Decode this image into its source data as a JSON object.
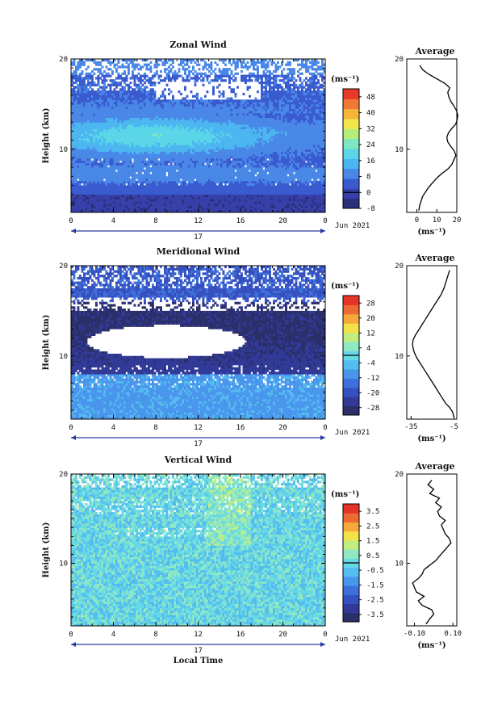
{
  "chart_data": [
    {
      "type": "heatmap",
      "title": "Zonal Wind",
      "ylabel": "Height (km)",
      "y_ticks": [
        "20",
        "10"
      ],
      "ylim": [
        3,
        20
      ],
      "x_ticks": [
        "0",
        "4",
        "8",
        "12",
        "16",
        "20",
        "0"
      ],
      "xlim": [
        0,
        24
      ],
      "date_label": "17",
      "date_right": "Jun 2021",
      "units": "(ms⁻¹)",
      "colorbar_ticks": [
        "48",
        "40",
        "32",
        "24",
        "16",
        "8",
        "0",
        "-8"
      ],
      "colorbar_range": [
        -8,
        52
      ],
      "colors": [
        "#2b2f7a",
        "#3640a8",
        "#3a5bd0",
        "#4a88e8",
        "#4cb6f0",
        "#5ad6e8",
        "#7ee6c0",
        "#b4ee7a",
        "#f2e64a",
        "#f6b43a",
        "#f07836",
        "#e83a2a"
      ],
      "profile": {
        "title": "Average",
        "xlabel": "(ms⁻¹)",
        "x_ticks": [
          "0",
          "10",
          "20"
        ],
        "xlim": [
          -5,
          20
        ],
        "y_ticks": [
          "20",
          "10"
        ],
        "ylim": [
          3,
          20
        ],
        "x": [
          1,
          1.5,
          2.2,
          3.0,
          4.5,
          6.0,
          8.0,
          10.0,
          12.5,
          15.5,
          17.5,
          18.5,
          19.5,
          18.8,
          17.0,
          15.5,
          15.0,
          15.8,
          17.5,
          19.5,
          20.2,
          20.5,
          19.8,
          18.5,
          17.0,
          16.0,
          15.5,
          16.5,
          14.0,
          10.0,
          6.0,
          3.0,
          1.5
        ],
        "y": [
          3.2,
          3.8,
          4.3,
          4.8,
          5.3,
          5.8,
          6.3,
          6.8,
          7.3,
          7.8,
          8.3,
          8.8,
          9.3,
          9.8,
          10.3,
          10.8,
          11.3,
          11.8,
          12.3,
          12.8,
          13.3,
          13.8,
          14.3,
          14.8,
          15.3,
          15.8,
          16.3,
          16.8,
          17.3,
          17.8,
          18.3,
          18.8,
          19.3
        ]
      }
    },
    {
      "type": "heatmap",
      "title": "Meridional Wind",
      "ylabel": "Height (km)",
      "y_ticks": [
        "20",
        "10"
      ],
      "ylim": [
        3,
        20
      ],
      "x_ticks": [
        "0",
        "4",
        "8",
        "12",
        "16",
        "20",
        "0"
      ],
      "xlim": [
        0,
        24
      ],
      "date_label": "17",
      "date_right": "Jun 2021",
      "units": "(ms⁻¹)",
      "colorbar_ticks": [
        "28",
        "20",
        "12",
        "4",
        "-4",
        "-12",
        "-20",
        "-28"
      ],
      "colorbar_range": [
        -32,
        32
      ],
      "colors": [
        "#2b2f6a",
        "#323a98",
        "#3650c0",
        "#3d70dc",
        "#4a96ec",
        "#55bcf0",
        "#66d8e6",
        "#8ee8c4",
        "#c2ee80",
        "#f4e24a",
        "#f6a83a",
        "#ee6a34",
        "#e43428"
      ],
      "profile": {
        "title": "Average",
        "xlabel": "(ms⁻¹)",
        "x_ticks": [
          "-35",
          "-5"
        ],
        "xlim": [
          -38,
          -3
        ],
        "y_ticks": [
          "20",
          "10"
        ],
        "ylim": [
          3,
          20
        ],
        "x": [
          -5,
          -6,
          -8,
          -11,
          -13,
          -15,
          -17,
          -19,
          -21,
          -23,
          -25,
          -27,
          -29,
          -31,
          -32.5,
          -33.5,
          -34,
          -33.5,
          -32,
          -30,
          -28,
          -26,
          -24,
          -22,
          -20,
          -18,
          -16,
          -14,
          -12,
          -10,
          -8
        ],
        "y": [
          3.2,
          3.8,
          4.3,
          4.8,
          5.3,
          5.8,
          6.3,
          6.8,
          7.3,
          7.8,
          8.3,
          8.8,
          9.3,
          9.8,
          10.3,
          10.8,
          11.3,
          11.8,
          12.3,
          12.8,
          13.3,
          13.8,
          14.3,
          14.8,
          15.3,
          15.8,
          16.3,
          16.8,
          17.5,
          18.5,
          19.5
        ]
      }
    },
    {
      "type": "heatmap",
      "title": "Vertical Wind",
      "ylabel": "Height (km)",
      "y_ticks": [
        "20",
        "10"
      ],
      "ylim": [
        3,
        20
      ],
      "x_ticks": [
        "0",
        "4",
        "8",
        "12",
        "16",
        "20",
        "0"
      ],
      "xlim": [
        0,
        24
      ],
      "date_label": "17",
      "date_right": "Jun 2021",
      "xlabel": "Local Time",
      "units": "(ms⁻¹)",
      "colorbar_ticks": [
        "3.5",
        "2.5",
        "1.5",
        "0.5",
        "-0.5",
        "-1.5",
        "-2.5",
        "-3.5"
      ],
      "colorbar_range": [
        -4,
        4
      ],
      "colors": [
        "#2b2f6a",
        "#323a98",
        "#3650c0",
        "#3d70dc",
        "#4a96ec",
        "#55bcf0",
        "#66d8e6",
        "#8ee8c4",
        "#c2ee80",
        "#f4e24a",
        "#f6a83a",
        "#ee6a34",
        "#e43428"
      ],
      "profile": {
        "title": "Average",
        "xlabel": "(ms⁻¹)",
        "x_ticks": [
          "-0.10",
          "0.10"
        ],
        "xlim": [
          -0.14,
          0.12
        ],
        "y_ticks": [
          "20",
          "10"
        ],
        "ylim": [
          3,
          20
        ],
        "x": [
          -0.04,
          -0.02,
          0.0,
          -0.01,
          -0.06,
          -0.08,
          -0.05,
          -0.09,
          -0.1,
          -0.11,
          -0.08,
          -0.06,
          -0.05,
          -0.02,
          0.01,
          0.03,
          0.05,
          0.07,
          0.09,
          0.08,
          0.06,
          0.05,
          0.04,
          0.06,
          0.03,
          0.02,
          0.04,
          0.01,
          0.03,
          -0.02,
          0.0,
          -0.03,
          -0.01
        ],
        "y": [
          3.2,
          3.8,
          4.3,
          4.8,
          5.3,
          5.8,
          6.3,
          6.8,
          7.3,
          7.8,
          8.3,
          8.8,
          9.3,
          9.8,
          10.3,
          10.8,
          11.3,
          11.8,
          12.3,
          12.8,
          13.3,
          13.8,
          14.3,
          14.8,
          15.3,
          15.8,
          16.3,
          16.8,
          17.3,
          17.8,
          18.3,
          18.8,
          19.3
        ]
      }
    }
  ]
}
